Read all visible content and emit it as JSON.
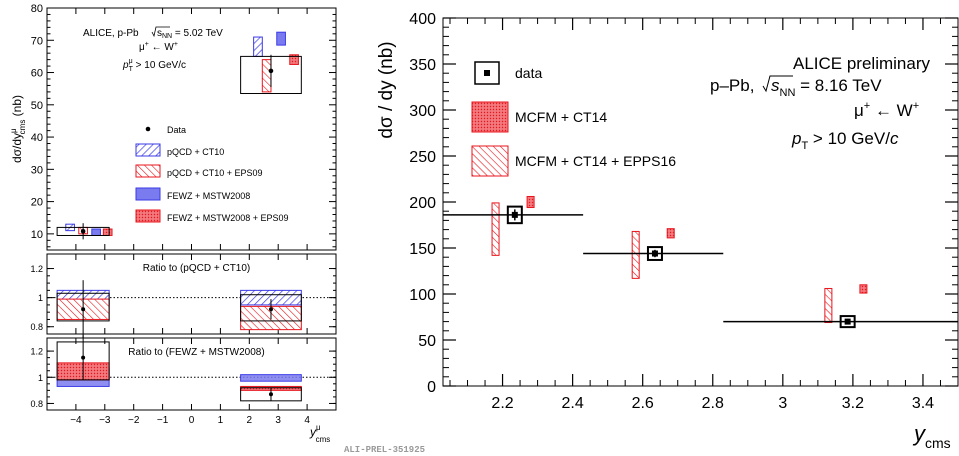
{
  "colors": {
    "red": "#e8151c",
    "red_fill": "#f27a7e",
    "blue": "#3a3ae6",
    "blue_fill": "#7b7bf0",
    "purple": "#a14a8a"
  },
  "watermark": "ALI-PREL-351925",
  "chart_data": [
    {
      "type": "scatter",
      "panel": "left-top",
      "ylabel_parts": {
        "base": "dσ/dy",
        "sup": "μ",
        "sub": "cms",
        "unit": " (nb)"
      },
      "xlabel_parts": {
        "base": "y",
        "sup": "μ",
        "sub": "cms"
      },
      "ylim": [
        5,
        80
      ],
      "xlim": [
        -5,
        5
      ],
      "yticks": [
        10,
        20,
        30,
        40,
        50,
        60,
        70,
        80
      ],
      "xticks": [
        -4,
        -3,
        -2,
        -1,
        0,
        1,
        2,
        3,
        4
      ],
      "info": {
        "line1": "ALICE, p-Pb",
        "sqrt_label": "s",
        "sqrt_sub": "NN",
        "energy": " = 5.02 TeV",
        "process": "μ",
        "process_sup": "+",
        "arrow": " ← W",
        "arrow_sup": "+",
        "cut_p": "p",
        "cut_sub": "T",
        "cut_sup": "μ",
        "cut": " > 10 GeV/c"
      },
      "legend": [
        {
          "label": "Data",
          "style": "marker"
        },
        {
          "label": "pQCD + CT10",
          "style": "blue-hatch"
        },
        {
          "label": "pQCD + CT10 + EPS09",
          "style": "red-hatch"
        },
        {
          "label": "FEWZ + MSTW2008",
          "style": "blue-fill"
        },
        {
          "label": "FEWZ + MSTW2008 + EPS09",
          "style": "red-fill"
        }
      ],
      "data_points": [
        {
          "x": -3.75,
          "y": 10.8,
          "xerr": 0.9,
          "stat": 2.5,
          "sys_low": 9.5,
          "sys_high": 12.0
        },
        {
          "x": 2.75,
          "y": 60.5,
          "xerr": 1.05,
          "stat": 5.0,
          "sys_low": 53.5,
          "sys_high": 65.0
        }
      ],
      "models": [
        {
          "name": "pQCD + CT10",
          "style": "blue-hatch",
          "boxes": [
            [
              -4.35,
              -4.05,
              11.0,
              13.0
            ],
            [
              2.15,
              2.45,
              65.0,
              71.0
            ]
          ]
        },
        {
          "name": "pQCD + CT10 + EPS09",
          "style": "red-hatch",
          "boxes": [
            [
              -3.9,
              -3.6,
              10.0,
              12.0
            ],
            [
              2.45,
              2.75,
              54.0,
              64.0
            ]
          ]
        },
        {
          "name": "FEWZ + MSTW2008",
          "style": "blue-fill",
          "boxes": [
            [
              -3.45,
              -3.15,
              9.5,
              11.5
            ],
            [
              2.95,
              3.25,
              68.5,
              72.5
            ]
          ]
        },
        {
          "name": "FEWZ + MSTW2008 + EPS09",
          "style": "red-fill",
          "boxes": [
            [
              -3.05,
              -2.75,
              9.5,
              11.5
            ],
            [
              3.4,
              3.7,
              62.5,
              65.5
            ]
          ]
        }
      ]
    },
    {
      "type": "scatter",
      "panel": "left-middle",
      "title": "Ratio to (pQCD + CT10)",
      "ylim": [
        0.75,
        1.3
      ],
      "yticks": [
        0.8,
        1,
        1.2
      ],
      "xlim": [
        -5,
        5
      ],
      "points": [
        {
          "x": -3.75,
          "y": 0.92,
          "stat": 0.2,
          "sys_low": 0.84,
          "sys_high": 1.03,
          "xerr": 0.9
        },
        {
          "x": 2.75,
          "y": 0.92,
          "stat": 0.07,
          "sys_low": 0.84,
          "sys_high": 1.02,
          "xerr": 1.05
        }
      ],
      "bands": [
        {
          "style": "blue-hatch",
          "ranges": [
            [
              -4.65,
              -2.85,
              0.95,
              1.05
            ],
            [
              1.7,
              3.8,
              0.95,
              1.05
            ]
          ]
        },
        {
          "style": "red-hatch",
          "ranges": [
            [
              -4.65,
              -2.85,
              0.85,
              0.99
            ],
            [
              1.7,
              3.8,
              0.78,
              0.94
            ]
          ]
        }
      ]
    },
    {
      "type": "scatter",
      "panel": "left-bottom",
      "title": "Ratio to (FEWZ + MSTW2008)",
      "ylim": [
        0.75,
        1.3
      ],
      "yticks": [
        0.8,
        1,
        1.2
      ],
      "xlim": [
        -5,
        5
      ],
      "points": [
        {
          "x": -3.75,
          "y": 1.15,
          "stat": 0.17,
          "sys_low": 0.98,
          "sys_high": 1.27,
          "xerr": 0.9
        },
        {
          "x": 2.75,
          "y": 0.87,
          "stat": 0.05,
          "sys_low": 0.82,
          "sys_high": 0.92,
          "xerr": 1.05
        }
      ],
      "bands": [
        {
          "style": "blue-fill",
          "ranges": [
            [
              -4.65,
              -2.85,
              0.93,
              1.07
            ],
            [
              1.7,
              3.8,
              0.97,
              1.02
            ]
          ]
        },
        {
          "style": "red-fill",
          "ranges": [
            [
              -4.65,
              -2.85,
              0.98,
              1.11
            ],
            [
              1.7,
              3.8,
              0.9,
              0.93
            ]
          ]
        }
      ]
    },
    {
      "type": "scatter",
      "panel": "right",
      "ylabel": "dσ / dy (nb)",
      "xlabel_parts": {
        "base": "y",
        "sub": "cms"
      },
      "xlim": [
        2.03,
        3.5
      ],
      "ylim": [
        0,
        400
      ],
      "xticks": [
        2.2,
        2.4,
        2.6,
        2.8,
        3,
        3.2,
        3.4
      ],
      "yticks": [
        0,
        50,
        100,
        150,
        200,
        250,
        300,
        350,
        400
      ],
      "info": {
        "line1": "ALICE preliminary",
        "line2a": "p–Pb, ",
        "sqrt_label": "s",
        "sqrt_sub": "NN",
        "line2b": " = 8.16 TeV",
        "process": "μ",
        "process_sup": "+",
        "arrow": " ← W",
        "arrow_sup": "+",
        "cut_p": "p",
        "cut_sub": "T",
        "cut": " > 10 GeV/c"
      },
      "legend": [
        {
          "label": "data",
          "style": "marker-box"
        },
        {
          "label": "MCFM + CT14",
          "style": "red-fill"
        },
        {
          "label": "MCFM + CT14 + EPPS16",
          "style": "red-hatch"
        }
      ],
      "data_points": [
        {
          "x": 2.235,
          "y": 186,
          "xerr_low": 0.205,
          "xerr_high": 0.195,
          "stat": 6,
          "sys": 9
        },
        {
          "x": 2.635,
          "y": 144,
          "xerr_low": 0.205,
          "xerr_high": 0.195,
          "stat": 4,
          "sys": 7
        },
        {
          "x": 3.185,
          "y": 70,
          "xerr_low": 0.355,
          "xerr_high": 0.315,
          "stat": 3,
          "sys": 6
        }
      ],
      "models": [
        {
          "name": "MCFM + CT14",
          "style": "red-fill",
          "boxes": [
            [
              2.27,
              2.29,
              194,
              206
            ],
            [
              2.67,
              2.69,
              161,
              171
            ],
            [
              3.22,
              3.24,
              101,
              110
            ]
          ]
        },
        {
          "name": "MCFM + CT14 + EPPS16",
          "style": "red-hatch",
          "boxes": [
            [
              2.17,
              2.19,
              142,
              199
            ],
            [
              2.57,
              2.59,
              117,
              168
            ],
            [
              3.12,
              3.14,
              69,
              106
            ]
          ]
        }
      ]
    }
  ]
}
